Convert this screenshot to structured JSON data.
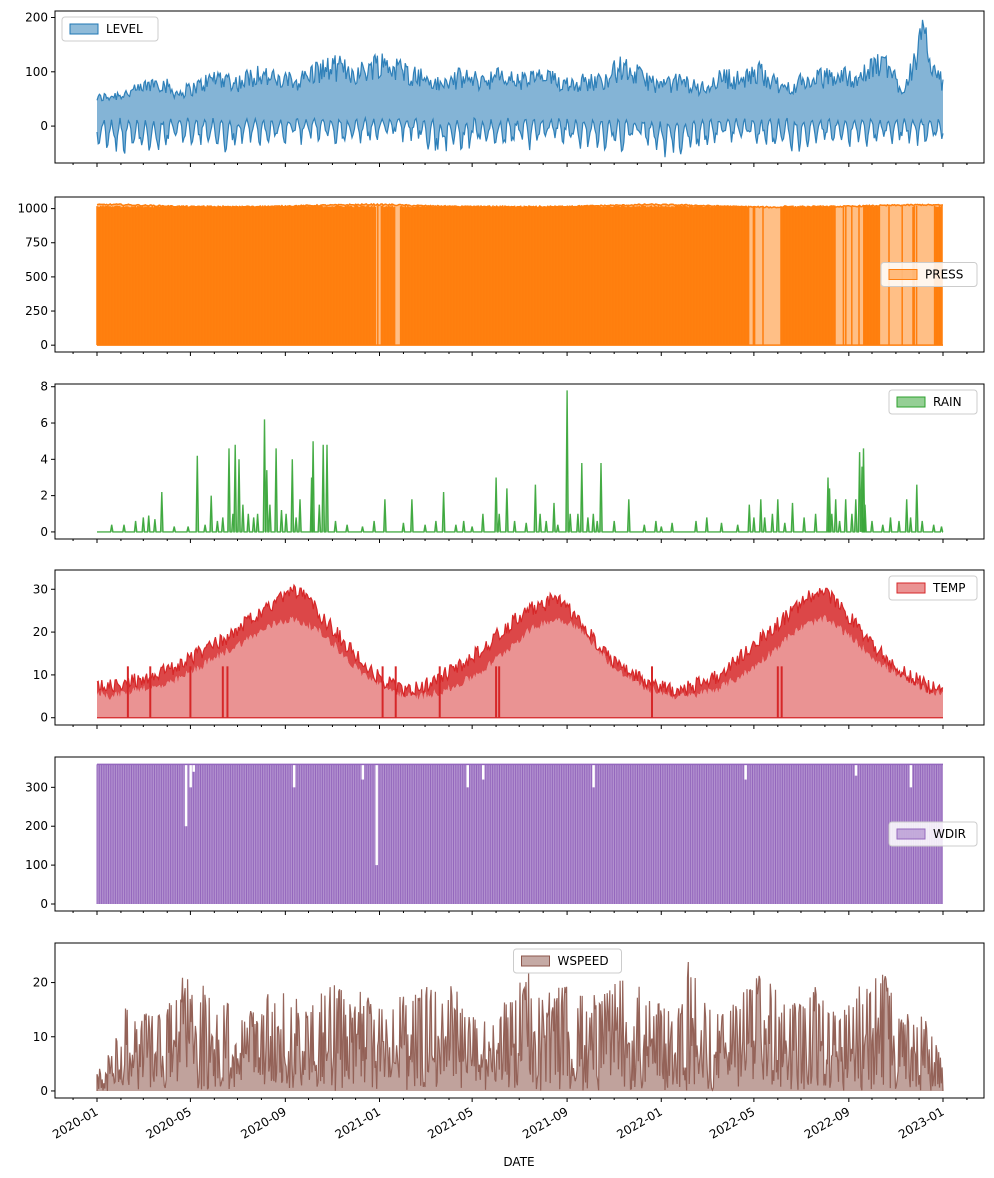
{
  "colors": {
    "LEVEL": "#1f77b4",
    "PRESS": "#ff7f0e",
    "RAIN": "#2ca02c",
    "TEMP": "#d62728",
    "WDIR": "#9467bd",
    "WSPEED": "#8c564b"
  },
  "chart_data": {
    "type": "area",
    "layout": "6 vertically stacked panels sharing the x axis",
    "xlabel": "DATE",
    "x_range": [
      "2020-01-01",
      "2023-01-01"
    ],
    "x_ticks": [
      "2020-01",
      "2020-05",
      "2020-09",
      "2021-01",
      "2021-05",
      "2021-09",
      "2022-01",
      "2022-05",
      "2022-09",
      "2023-01"
    ],
    "grid": false,
    "series": [
      {
        "name": "LEVEL",
        "legend": "upper-left",
        "ylim": [
          -68,
          212
        ],
        "yticks": [
          0,
          100,
          200
        ],
        "behavior": "oscillating tide level, baseline about 20, envelope of upper and lower extremes per period",
        "upper": [
          60,
          68,
          78,
          102,
          72,
          88,
          112,
          96,
          120,
          100,
          102,
          126,
          132,
          118,
          145,
          128,
          112,
          90,
          108,
          102,
          110,
          100,
          110,
          98,
          98,
          100,
          132,
          110,
          88,
          100,
          82,
          110,
          102,
          122,
          82,
          98,
          108,
          112,
          110,
          150,
          80,
          200,
          90
        ],
        "lower": [
          -35,
          -50,
          -46,
          -42,
          -28,
          -32,
          -40,
          -38,
          -30,
          -36,
          -28,
          -22,
          -28,
          -32,
          -20,
          -26,
          -30,
          -50,
          -48,
          -35,
          -40,
          -38,
          -28,
          -32,
          -36,
          -46,
          -40,
          -30,
          -55,
          -52,
          -42,
          -30,
          -28,
          -35,
          -48,
          -42,
          -30,
          -32,
          -36,
          -30,
          -32,
          -30,
          -32
        ]
      },
      {
        "name": "PRESS",
        "legend": "center-right",
        "ylim": [
          -50,
          1085
        ],
        "yticks": [
          0,
          250,
          500,
          750,
          1000
        ],
        "behavior": "atmospheric pressure around 1010-1030 with many drops to 0 (missing readings)",
        "upper": [
          1028,
          1030,
          1025,
          1020,
          1015,
          1012,
          1010,
          1012,
          1015,
          1018,
          1022,
          1025,
          1028,
          1030,
          1028,
          1022,
          1018,
          1015,
          1012,
          1010,
          1010,
          1012,
          1015,
          1018,
          1022,
          1025,
          1030,
          1028,
          1025,
          1020,
          1015,
          1012,
          1010,
          1010,
          1012,
          1015,
          1018,
          1022,
          1025,
          1028,
          1025
        ],
        "sparse_periods": [
          [
            "2020-12-28",
            "2021-01-05"
          ],
          [
            "2021-01-22",
            "2021-01-28"
          ],
          [
            "2022-04-25",
            "2022-06-05"
          ],
          [
            "2022-08-14",
            "2022-09-20"
          ],
          [
            "2022-10-10",
            "2022-12-20"
          ]
        ]
      },
      {
        "name": "RAIN",
        "legend": "upper-right",
        "ylim": [
          -0.39,
          8.15
        ],
        "yticks": [
          0,
          2,
          4,
          6,
          8
        ],
        "behavior": "mostly 0 with occasional spikes",
        "spikes": [
          [
            "2020-01-20",
            0.4
          ],
          [
            "2020-02-05",
            0.4
          ],
          [
            "2020-02-20",
            0.6
          ],
          [
            "2020-03-01",
            0.8
          ],
          [
            "2020-03-08",
            0.9
          ],
          [
            "2020-03-16",
            0.7
          ],
          [
            "2020-03-25",
            2.2
          ],
          [
            "2020-04-10",
            0.3
          ],
          [
            "2020-04-28",
            0.3
          ],
          [
            "2020-05-10",
            4.2
          ],
          [
            "2020-05-20",
            0.4
          ],
          [
            "2020-05-28",
            2.0
          ],
          [
            "2020-06-05",
            0.6
          ],
          [
            "2020-06-12",
            0.8
          ],
          [
            "2020-06-20",
            4.6
          ],
          [
            "2020-06-25",
            1.0
          ],
          [
            "2020-06-28",
            4.8
          ],
          [
            "2020-07-03",
            4.0
          ],
          [
            "2020-07-08",
            1.5
          ],
          [
            "2020-07-15",
            1.0
          ],
          [
            "2020-07-22",
            0.8
          ],
          [
            "2020-07-27",
            1.0
          ],
          [
            "2020-08-05",
            6.2
          ],
          [
            "2020-08-08",
            3.4
          ],
          [
            "2020-08-12",
            1.5
          ],
          [
            "2020-08-20",
            4.6
          ],
          [
            "2020-08-27",
            1.2
          ],
          [
            "2020-09-02",
            1.0
          ],
          [
            "2020-09-10",
            4.0
          ],
          [
            "2020-09-15",
            0.8
          ],
          [
            "2020-09-20",
            1.8
          ],
          [
            "2020-10-05",
            3.0
          ],
          [
            "2020-10-07",
            5.0
          ],
          [
            "2020-10-15",
            1.5
          ],
          [
            "2020-10-20",
            4.8
          ],
          [
            "2020-10-25",
            4.8
          ],
          [
            "2020-11-05",
            0.6
          ],
          [
            "2020-11-20",
            0.4
          ],
          [
            "2020-12-10",
            0.3
          ],
          [
            "2020-12-25",
            0.6
          ],
          [
            "2021-01-08",
            1.8
          ],
          [
            "2021-02-01",
            0.5
          ],
          [
            "2021-02-12",
            1.8
          ],
          [
            "2021-03-01",
            0.4
          ],
          [
            "2021-03-15",
            0.6
          ],
          [
            "2021-03-25",
            2.2
          ],
          [
            "2021-04-10",
            0.4
          ],
          [
            "2021-04-20",
            0.6
          ],
          [
            "2021-05-01",
            0.3
          ],
          [
            "2021-05-15",
            1.0
          ],
          [
            "2021-06-01",
            3.0
          ],
          [
            "2021-06-05",
            1.0
          ],
          [
            "2021-06-15",
            2.4
          ],
          [
            "2021-06-25",
            0.6
          ],
          [
            "2021-07-10",
            0.5
          ],
          [
            "2021-07-22",
            2.6
          ],
          [
            "2021-07-28",
            1.0
          ],
          [
            "2021-08-05",
            0.6
          ],
          [
            "2021-08-15",
            1.6
          ],
          [
            "2021-08-20",
            0.4
          ],
          [
            "2021-09-01",
            7.8
          ],
          [
            "2021-09-05",
            1.0
          ],
          [
            "2021-09-15",
            1.0
          ],
          [
            "2021-09-20",
            3.8
          ],
          [
            "2021-09-28",
            0.8
          ],
          [
            "2021-10-05",
            1.0
          ],
          [
            "2021-10-10",
            0.6
          ],
          [
            "2021-10-15",
            3.8
          ],
          [
            "2021-11-01",
            0.6
          ],
          [
            "2021-11-20",
            1.8
          ],
          [
            "2021-12-10",
            0.4
          ],
          [
            "2021-12-25",
            0.6
          ],
          [
            "2022-01-01",
            0.3
          ],
          [
            "2022-01-15",
            0.5
          ],
          [
            "2022-02-15",
            0.6
          ],
          [
            "2022-03-01",
            0.8
          ],
          [
            "2022-03-20",
            0.5
          ],
          [
            "2022-04-10",
            0.4
          ],
          [
            "2022-04-25",
            1.5
          ],
          [
            "2022-05-01",
            0.8
          ],
          [
            "2022-05-10",
            1.8
          ],
          [
            "2022-05-15",
            0.8
          ],
          [
            "2022-05-25",
            1.0
          ],
          [
            "2022-06-01",
            1.8
          ],
          [
            "2022-06-10",
            0.5
          ],
          [
            "2022-06-20",
            1.6
          ],
          [
            "2022-07-05",
            0.8
          ],
          [
            "2022-07-20",
            1.0
          ],
          [
            "2022-08-05",
            3.0
          ],
          [
            "2022-08-07",
            2.4
          ],
          [
            "2022-08-10",
            1.0
          ],
          [
            "2022-08-15",
            1.8
          ],
          [
            "2022-08-20",
            0.6
          ],
          [
            "2022-08-28",
            1.8
          ],
          [
            "2022-09-05",
            1.0
          ],
          [
            "2022-09-10",
            1.8
          ],
          [
            "2022-09-15",
            4.4
          ],
          [
            "2022-09-18",
            3.6
          ],
          [
            "2022-09-20",
            4.6
          ],
          [
            "2022-09-22",
            1.5
          ],
          [
            "2022-10-01",
            0.6
          ],
          [
            "2022-10-15",
            0.4
          ],
          [
            "2022-10-25",
            0.8
          ],
          [
            "2022-11-05",
            0.6
          ],
          [
            "2022-11-15",
            1.8
          ],
          [
            "2022-11-20",
            0.8
          ],
          [
            "2022-11-28",
            2.6
          ],
          [
            "2022-12-05",
            0.6
          ],
          [
            "2022-12-20",
            0.4
          ],
          [
            "2022-12-30",
            0.3
          ]
        ]
      },
      {
        "name": "TEMP",
        "legend": "upper-right",
        "ylim": [
          -1.7,
          34.5
        ],
        "yticks": [
          0,
          10,
          20,
          30
        ],
        "behavior": "seasonal temperature, lows near 5-8 in winter, highs near 30-32 in summer, occasional drops to 0",
        "upper": [
          10,
          9,
          10,
          11,
          12,
          13,
          15,
          17,
          19,
          21,
          24,
          26,
          28,
          32,
          30,
          26,
          22,
          18,
          14,
          11,
          9,
          8,
          9,
          11,
          13,
          15,
          18,
          21,
          24,
          27,
          28,
          30,
          26,
          22,
          18,
          14,
          12,
          10,
          9,
          8,
          9,
          10,
          12,
          15,
          18,
          21,
          24,
          27,
          30,
          31,
          28,
          24,
          20,
          16,
          13,
          11,
          9,
          8
        ],
        "lower": [
          5,
          4,
          5,
          6,
          6,
          7,
          9,
          11,
          13,
          15,
          17,
          19,
          21,
          22,
          21,
          19,
          16,
          12,
          9,
          7,
          5,
          4,
          4,
          5,
          6,
          8,
          10,
          13,
          16,
          19,
          21,
          22,
          21,
          18,
          14,
          10,
          8,
          6,
          5,
          4,
          4,
          5,
          6,
          8,
          10,
          13,
          16,
          19,
          21,
          22,
          20,
          17,
          14,
          11,
          9,
          7,
          5,
          5
        ],
        "drops_to_zero": [
          "2020-02-10",
          "2020-03-10",
          "2020-05-01",
          "2020-06-12",
          "2020-06-18",
          "2021-01-05",
          "2021-01-22",
          "2021-03-20",
          "2021-06-01",
          "2021-06-05",
          "2021-12-20",
          "2022-06-01",
          "2022-06-06"
        ]
      },
      {
        "name": "WDIR",
        "legend": "center-right",
        "ylim": [
          -18,
          378
        ],
        "yticks": [
          0,
          100,
          200,
          300
        ],
        "behavior": "wind direction 0-359, densely filled with occasional lower-top gaps",
        "top": 359,
        "gaps": [
          [
            "2020-04-25",
            200
          ],
          [
            "2020-05-01",
            300
          ],
          [
            "2020-05-05",
            340
          ],
          [
            "2020-09-12",
            300
          ],
          [
            "2020-12-10",
            320
          ],
          [
            "2020-12-28",
            100
          ],
          [
            "2021-04-25",
            300
          ],
          [
            "2021-05-15",
            320
          ],
          [
            "2021-10-05",
            300
          ],
          [
            "2022-04-20",
            320
          ],
          [
            "2022-09-10",
            330
          ],
          [
            "2022-11-20",
            300
          ]
        ]
      },
      {
        "name": "WSPEED",
        "legend": "upper-center",
        "ylim": [
          -1.3,
          27.3
        ],
        "yticks": [
          0,
          10,
          20
        ],
        "behavior": "wind speed mostly 0-15 with gusts up to 26",
        "upper": [
          7,
          8,
          17,
          14,
          15,
          18,
          22,
          20,
          18,
          16,
          14,
          17,
          20,
          19,
          16,
          18,
          20,
          17,
          19,
          16,
          18,
          20,
          20,
          18,
          20,
          14,
          15,
          16,
          18,
          23,
          17,
          20,
          19,
          18,
          18,
          20,
          22,
          17,
          16,
          14,
          26,
          16,
          14,
          18,
          20,
          26,
          16,
          18,
          20,
          18,
          16,
          20,
          19,
          25,
          16,
          15,
          14,
          5
        ]
      }
    ]
  }
}
